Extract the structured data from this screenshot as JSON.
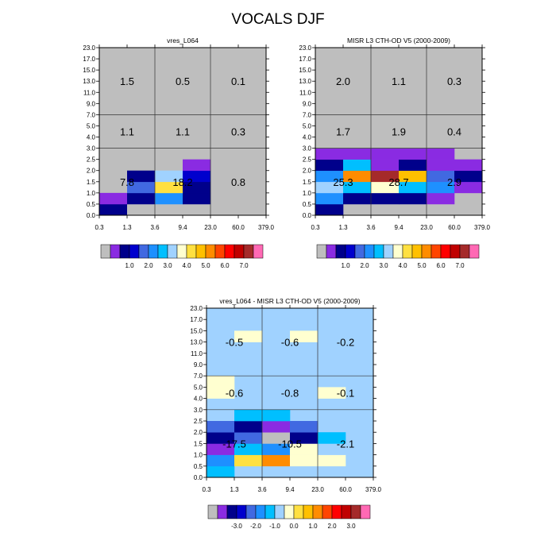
{
  "figure_title": "VOCALS DJF",
  "x_ticks": [
    "0.3",
    "1.3",
    "3.6",
    "9.4",
    "23.0",
    "60.0",
    "379.0"
  ],
  "y_ticks": [
    "0.0",
    "0.5",
    "1.0",
    "1.5",
    "2.0",
    "2.5",
    "3.0",
    "4.0",
    "5.0",
    "7.0",
    "9.0",
    "11.0",
    "13.0",
    "15.0",
    "17.0",
    "23.0"
  ],
  "colors": {
    "missing": "#bebebe",
    "abs_palette": [
      "#bebebe",
      "#8a2be2",
      "#00008b",
      "#0000cd",
      "#4169e1",
      "#1e90ff",
      "#00bfff",
      "#a0d2ff",
      "#ffffd0",
      "#ffe040",
      "#ffc000",
      "#ff8c00",
      "#ff4500",
      "#ff0000",
      "#c00000",
      "#a52a2a",
      "#ff69b4"
    ],
    "diff_palette": [
      "#bebebe",
      "#8a2be2",
      "#00008b",
      "#0000cd",
      "#4169e1",
      "#1e90ff",
      "#00bfff",
      "#a0d2ff",
      "#ffffd0",
      "#ffe040",
      "#ffc000",
      "#ff8c00",
      "#ff4500",
      "#ff0000",
      "#c00000",
      "#a52a2a",
      "#ff69b4"
    ]
  },
  "colorbars": {
    "abs_labels": [
      "1.0",
      "2.0",
      "3.0",
      "4.0",
      "5.0",
      "6.0",
      "7.0"
    ],
    "diff_labels": [
      "-3.0",
      "-2.0",
      "-1.0",
      "0.0",
      "1.0",
      "2.0",
      "3.0"
    ]
  },
  "chart_data": [
    {
      "type": "heatmap",
      "title": "vres_L064",
      "background": 0,
      "cells": [
        {
          "col": 0,
          "row": 0,
          "c": 2
        },
        {
          "col": 1,
          "row": 0,
          "c": 0
        },
        {
          "col": 2,
          "row": 0,
          "c": 0
        },
        {
          "col": 3,
          "row": 0,
          "c": 0
        },
        {
          "col": 4,
          "row": 0,
          "c": 0
        },
        {
          "col": 0,
          "row": 1,
          "c": 1
        },
        {
          "col": 1,
          "row": 1,
          "c": 2
        },
        {
          "col": 2,
          "row": 1,
          "c": 5
        },
        {
          "col": 3,
          "row": 1,
          "c": 2
        },
        {
          "col": 1,
          "row": 2,
          "c": 4
        },
        {
          "col": 2,
          "row": 2,
          "c": 9
        },
        {
          "col": 3,
          "row": 2,
          "c": 2
        },
        {
          "col": 1,
          "row": 3,
          "c": 2
        },
        {
          "col": 2,
          "row": 3,
          "c": 7
        },
        {
          "col": 3,
          "row": 3,
          "c": 3
        },
        {
          "col": 3,
          "row": 4,
          "c": 1
        }
      ],
      "annotations": [
        {
          "col": 1,
          "band": "low",
          "text": "7.8"
        },
        {
          "col": 3,
          "band": "low",
          "text": "18.2"
        },
        {
          "col": 5,
          "band": "low",
          "text": "0.8"
        },
        {
          "col": 1,
          "band": "mid",
          "text": "1.1"
        },
        {
          "col": 3,
          "band": "mid",
          "text": "1.1"
        },
        {
          "col": 5,
          "band": "mid",
          "text": "0.3"
        },
        {
          "col": 1,
          "band": "high",
          "text": "1.5"
        },
        {
          "col": 3,
          "band": "high",
          "text": "0.5"
        },
        {
          "col": 5,
          "band": "high",
          "text": "0.1"
        }
      ]
    },
    {
      "type": "heatmap",
      "title": "MISR L3 CTH-OD V5 (2000-2009)",
      "background": 0,
      "cells": [
        {
          "col": 0,
          "row": 0,
          "c": 2
        },
        {
          "col": 0,
          "row": 1,
          "c": 5
        },
        {
          "col": 1,
          "row": 1,
          "c": 2
        },
        {
          "col": 2,
          "row": 1,
          "c": 2
        },
        {
          "col": 3,
          "row": 1,
          "c": 2
        },
        {
          "col": 4,
          "row": 1,
          "c": 1
        },
        {
          "col": 0,
          "row": 2,
          "c": 7
        },
        {
          "col": 1,
          "row": 2,
          "c": 6
        },
        {
          "col": 2,
          "row": 2,
          "c": 8
        },
        {
          "col": 3,
          "row": 2,
          "c": 6
        },
        {
          "col": 4,
          "row": 2,
          "c": 5
        },
        {
          "col": 5,
          "row": 2,
          "c": 1
        },
        {
          "col": 0,
          "row": 3,
          "c": 5
        },
        {
          "col": 1,
          "row": 3,
          "c": 11
        },
        {
          "col": 2,
          "row": 3,
          "c": 15
        },
        {
          "col": 3,
          "row": 3,
          "c": 10
        },
        {
          "col": 4,
          "row": 3,
          "c": 4
        },
        {
          "col": 5,
          "row": 3,
          "c": 2
        },
        {
          "col": 0,
          "row": 4,
          "c": 2
        },
        {
          "col": 1,
          "row": 4,
          "c": 6
        },
        {
          "col": 2,
          "row": 4,
          "c": 1
        },
        {
          "col": 3,
          "row": 4,
          "c": 2
        },
        {
          "col": 4,
          "row": 4,
          "c": 1
        },
        {
          "col": 5,
          "row": 4,
          "c": 1
        },
        {
          "col": 0,
          "row": 5,
          "c": 1
        },
        {
          "col": 1,
          "row": 5,
          "c": 1
        },
        {
          "col": 2,
          "row": 5,
          "c": 1
        },
        {
          "col": 3,
          "row": 5,
          "c": 1
        },
        {
          "col": 4,
          "row": 5,
          "c": 1
        }
      ],
      "annotations": [
        {
          "col": 1,
          "band": "low",
          "text": "25.3"
        },
        {
          "col": 3,
          "band": "low",
          "text": "28.7"
        },
        {
          "col": 5,
          "band": "low",
          "text": "2.9"
        },
        {
          "col": 1,
          "band": "mid",
          "text": "1.7"
        },
        {
          "col": 3,
          "band": "mid",
          "text": "1.9"
        },
        {
          "col": 5,
          "band": "mid",
          "text": "0.4"
        },
        {
          "col": 1,
          "band": "high",
          "text": "2.0"
        },
        {
          "col": 3,
          "band": "high",
          "text": "1.1"
        },
        {
          "col": 5,
          "band": "high",
          "text": "0.3"
        }
      ]
    },
    {
      "type": "heatmap",
      "title": "vres_L064 - MISR L3 CTH-OD V5 (2000-2009)",
      "background": 7,
      "cells": [
        {
          "col": 0,
          "row": 0,
          "c": 6
        },
        {
          "col": 0,
          "row": 1,
          "c": 5
        },
        {
          "col": 1,
          "row": 1,
          "c": 9
        },
        {
          "col": 2,
          "row": 1,
          "c": 11
        },
        {
          "col": 3,
          "row": 1,
          "c": 8
        },
        {
          "col": 4,
          "row": 1,
          "c": 8
        },
        {
          "col": 0,
          "row": 2,
          "c": 1
        },
        {
          "col": 1,
          "row": 2,
          "c": 6
        },
        {
          "col": 2,
          "row": 2,
          "c": 5
        },
        {
          "col": 3,
          "row": 2,
          "c": 8
        },
        {
          "col": 4,
          "row": 2,
          "c": 7
        },
        {
          "col": 0,
          "row": 3,
          "c": 2
        },
        {
          "col": 1,
          "row": 3,
          "c": 4
        },
        {
          "col": 2,
          "row": 3,
          "c": 0
        },
        {
          "col": 3,
          "row": 3,
          "c": 2
        },
        {
          "col": 4,
          "row": 3,
          "c": 6
        },
        {
          "col": 0,
          "row": 4,
          "c": 4
        },
        {
          "col": 1,
          "row": 4,
          "c": 2
        },
        {
          "col": 2,
          "row": 4,
          "c": 1
        },
        {
          "col": 3,
          "row": 4,
          "c": 4
        },
        {
          "col": 1,
          "row": 5,
          "c": 6
        },
        {
          "col": 2,
          "row": 5,
          "c": 6
        },
        {
          "col": 0,
          "row": 7,
          "c": 8
        },
        {
          "col": 4,
          "row": 7,
          "c": 8
        },
        {
          "col": 0,
          "row": 8,
          "c": 8
        },
        {
          "col": 1,
          "row": 12,
          "c": 8
        },
        {
          "col": 3,
          "row": 12,
          "c": 8
        }
      ],
      "annotations": [
        {
          "col": 1,
          "band": "low",
          "text": "-17.5"
        },
        {
          "col": 3,
          "band": "low",
          "text": "-10.5"
        },
        {
          "col": 5,
          "band": "low",
          "text": "-2.1"
        },
        {
          "col": 1,
          "band": "mid",
          "text": "-0.6"
        },
        {
          "col": 3,
          "band": "mid",
          "text": "-0.8"
        },
        {
          "col": 5,
          "band": "mid",
          "text": "-0.1"
        },
        {
          "col": 1,
          "band": "high",
          "text": "-0.5"
        },
        {
          "col": 3,
          "band": "high",
          "text": "-0.6"
        },
        {
          "col": 5,
          "band": "high",
          "text": "-0.2"
        }
      ]
    }
  ]
}
